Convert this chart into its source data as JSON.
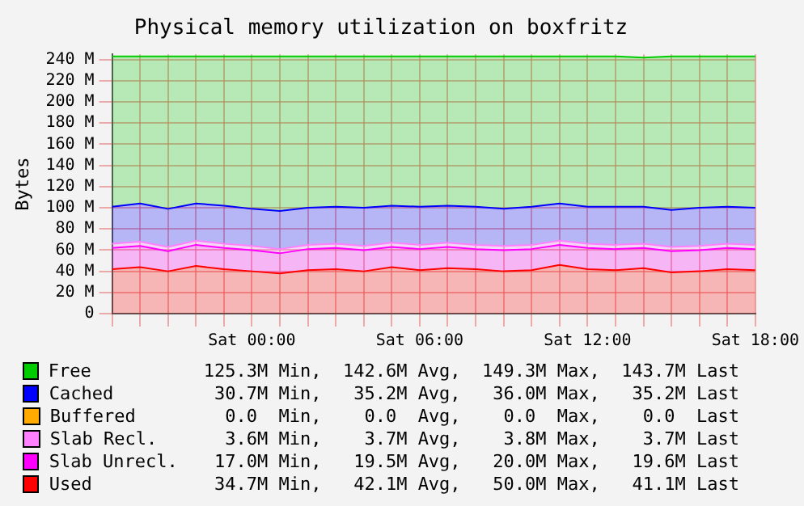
{
  "chart_data": {
    "type": "area",
    "title": "Physical memory utilization on boxfritz",
    "ylabel": "Bytes",
    "stacked": true,
    "grid": true,
    "legend": "bottom",
    "categories": [
      null,
      null,
      null,
      null,
      null,
      "Sat 00:00",
      null,
      null,
      null,
      null,
      null,
      "Sat 06:00",
      null,
      null,
      null,
      null,
      null,
      "Sat 12:00",
      null,
      null,
      null,
      null,
      null,
      "Sat 18:00"
    ],
    "ylim": [
      0,
      245
    ],
    "yticks": [
      {
        "value": 0,
        "label": "0"
      },
      {
        "value": 20,
        "label": "20 M"
      },
      {
        "value": 40,
        "label": "40 M"
      },
      {
        "value": 60,
        "label": "60 M"
      },
      {
        "value": 80,
        "label": "80 M"
      },
      {
        "value": 100,
        "label": "100 M"
      },
      {
        "value": 120,
        "label": "120 M"
      },
      {
        "value": 140,
        "label": "140 M"
      },
      {
        "value": 160,
        "label": "160 M"
      },
      {
        "value": 180,
        "label": "180 M"
      },
      {
        "value": 200,
        "label": "200 M"
      },
      {
        "value": 220,
        "label": "220 M"
      },
      {
        "value": 240,
        "label": "240 M"
      }
    ],
    "series": [
      {
        "name": "Used",
        "color": "#ff0000",
        "values": [
          42,
          44,
          40,
          45,
          42,
          40,
          38,
          41,
          42,
          40,
          44,
          41,
          43,
          42,
          40,
          41,
          46,
          42,
          41,
          43,
          39,
          40,
          42,
          41
        ]
      },
      {
        "name": "Slab Unrecl.",
        "color": "#ff00ff",
        "values": [
          20,
          20,
          19,
          20,
          20,
          20,
          19,
          20,
          20,
          20,
          19,
          20,
          20,
          19,
          20,
          20,
          19,
          20,
          20,
          19,
          20,
          20,
          20,
          20
        ]
      },
      {
        "name": "Slab Recl.",
        "color": "#ff80ff",
        "values": [
          4,
          4,
          4,
          4,
          4,
          4,
          4,
          4,
          4,
          4,
          4,
          4,
          4,
          4,
          4,
          4,
          4,
          4,
          4,
          4,
          4,
          4,
          4,
          4
        ]
      },
      {
        "name": "Buffered",
        "color": "#ffaa00",
        "values": [
          null,
          null,
          null,
          null,
          null,
          null,
          null,
          null,
          null,
          null,
          null,
          null,
          null,
          null,
          null,
          null,
          null,
          null,
          null,
          null,
          null,
          null,
          null,
          null
        ]
      },
      {
        "name": "Cached",
        "color": "#0000ff",
        "values": [
          35,
          36,
          36,
          35,
          36,
          35,
          36,
          35,
          35,
          36,
          35,
          36,
          35,
          36,
          35,
          36,
          35,
          35,
          36,
          35,
          35,
          36,
          35,
          35
        ]
      },
      {
        "name": "Free",
        "color": "#00cc00",
        "values": [
          142,
          139,
          144,
          139,
          141,
          144,
          146,
          143,
          142,
          143,
          141,
          142,
          141,
          142,
          144,
          142,
          139,
          142,
          142,
          141,
          145,
          143,
          142,
          143
        ]
      }
    ],
    "annotations": [
      "34.7M Min,   42.1M Avg,   50.0M Max,   41.1M Last",
      "17.0M Min,   19.5M Avg,   20.0M Max,   19.6M Last",
      "3.6M Min,    3.7M Avg,    3.8M Max,    3.7M Last",
      "0.0  Min,    0.0  Avg,    0.0  Max,    0.0  Last",
      "30.7M Min,   35.2M Avg,   36.0M Max,   35.2M Last",
      "125.3M Min,  142.6M Avg,  149.3M Max,  143.7M Last"
    ]
  }
}
